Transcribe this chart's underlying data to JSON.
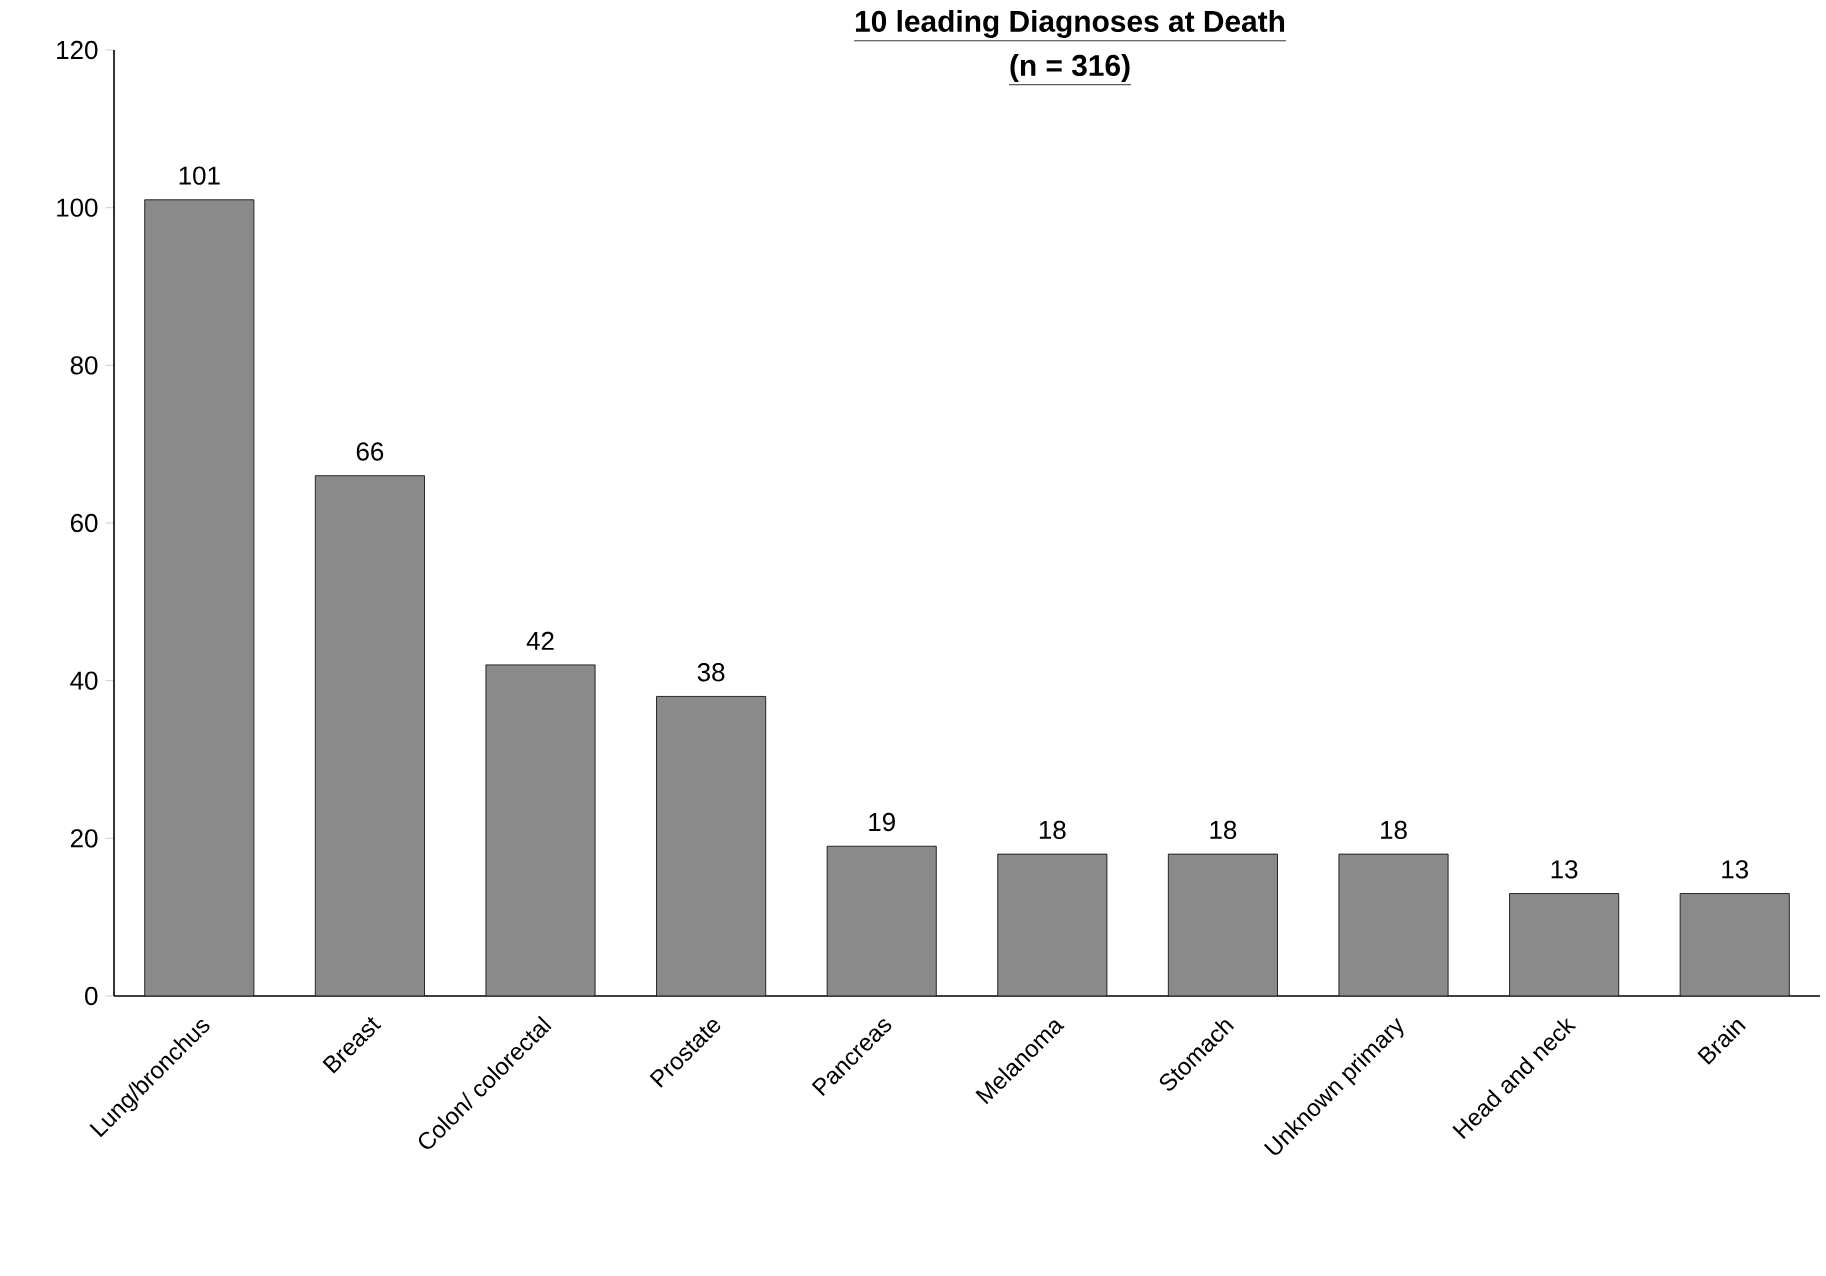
{
  "chart_data": {
    "type": "bar",
    "title": "10 leading Diagnoses at Death",
    "subtitle": "(n = 316)",
    "categories": [
      "Lung/bronchus",
      "Breast",
      "Colon/ colorectal",
      "Prostate",
      "Pancreas",
      "Melanoma",
      "Stomach",
      "Unknown primary",
      "Head and neck",
      "Brain"
    ],
    "values": [
      101,
      66,
      42,
      38,
      19,
      18,
      18,
      18,
      13,
      13
    ],
    "color": "#8a8a8a",
    "ylim": [
      0,
      120
    ],
    "yticks": [
      0,
      20,
      40,
      60,
      80,
      100,
      120
    ],
    "data_labels": true,
    "grid": false
  }
}
